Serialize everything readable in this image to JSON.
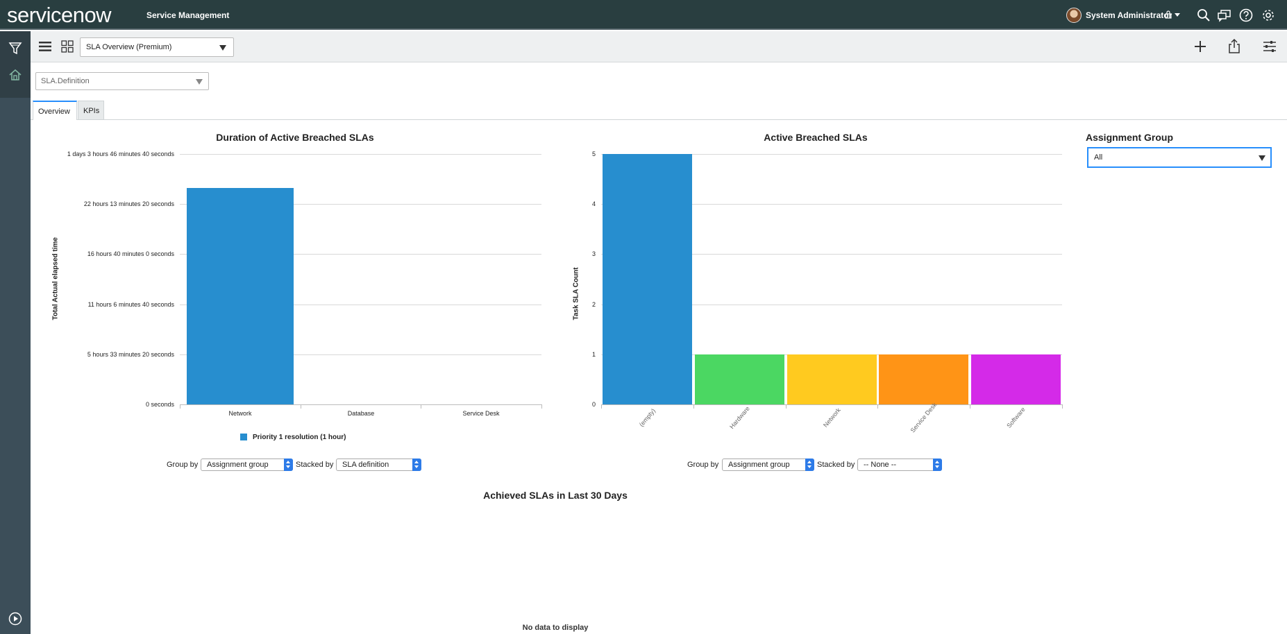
{
  "banner": {
    "logo_service": "service",
    "logo_now": "now",
    "title": "Service Management",
    "user": "System Administrator"
  },
  "toolbar": {
    "dashboard": "SLA Overview (Premium)"
  },
  "filter": {
    "value": "SLA.Definition"
  },
  "tabs": [
    "Overview",
    "KPIs"
  ],
  "charts": [
    {
      "title": "Duration of Active Breached SLAs",
      "ylabel": "Total Actual elapsed time",
      "legend": "Priority 1 resolution (1 hour)",
      "group_by_label": "Group by",
      "group_by_value": "Assignment group",
      "stacked_by_label": "Stacked by",
      "stacked_by_value": "SLA definition"
    },
    {
      "title": "Active Breached SLAs",
      "ylabel": "Task SLA Count",
      "group_by_label": "Group by",
      "group_by_value": "Assignment group",
      "stacked_by_label": "Stacked by",
      "stacked_by_value": "-- None --"
    }
  ],
  "chart_data": [
    {
      "type": "bar",
      "title": "Duration of Active Breached SLAs",
      "ylabel": "Total Actual elapsed time",
      "categories": [
        "Network",
        "Database",
        "Service Desk"
      ],
      "series": [
        {
          "name": "Priority 1 resolution (1 hour)",
          "values": [
            86400,
            0,
            0
          ],
          "color": "#278ecf"
        }
      ],
      "yticks": [
        "1 days 3 hours 46 minutes 40 seconds",
        "22 hours 13 minutes 20 seconds",
        "16 hours 40 minutes 0 seconds",
        "11 hours 6 minutes 40 seconds",
        "5 hours 33 minutes 20 seconds",
        "0 seconds"
      ],
      "ylim": [
        0,
        100000
      ],
      "grid": true,
      "legend_position": "bottom"
    },
    {
      "type": "bar",
      "title": "Active Breached SLAs",
      "ylabel": "Task SLA Count",
      "categories": [
        "(empty)",
        "Hardware",
        "Network",
        "Service Desk",
        "Software"
      ],
      "values": [
        5,
        1,
        1,
        1,
        1
      ],
      "colors": [
        "#278ecf",
        "#4bd762",
        "#ffca1f",
        "#ff9416",
        "#d42ae8"
      ],
      "yticks": [
        "5",
        "4",
        "3",
        "2",
        "1",
        "0"
      ],
      "ylim": [
        0,
        5
      ],
      "grid": true
    }
  ],
  "assignment_group": {
    "label": "Assignment Group",
    "value": "All"
  },
  "achieved": {
    "title": "Achieved SLAs in Last 30 Days",
    "no_data": "No data to display"
  }
}
